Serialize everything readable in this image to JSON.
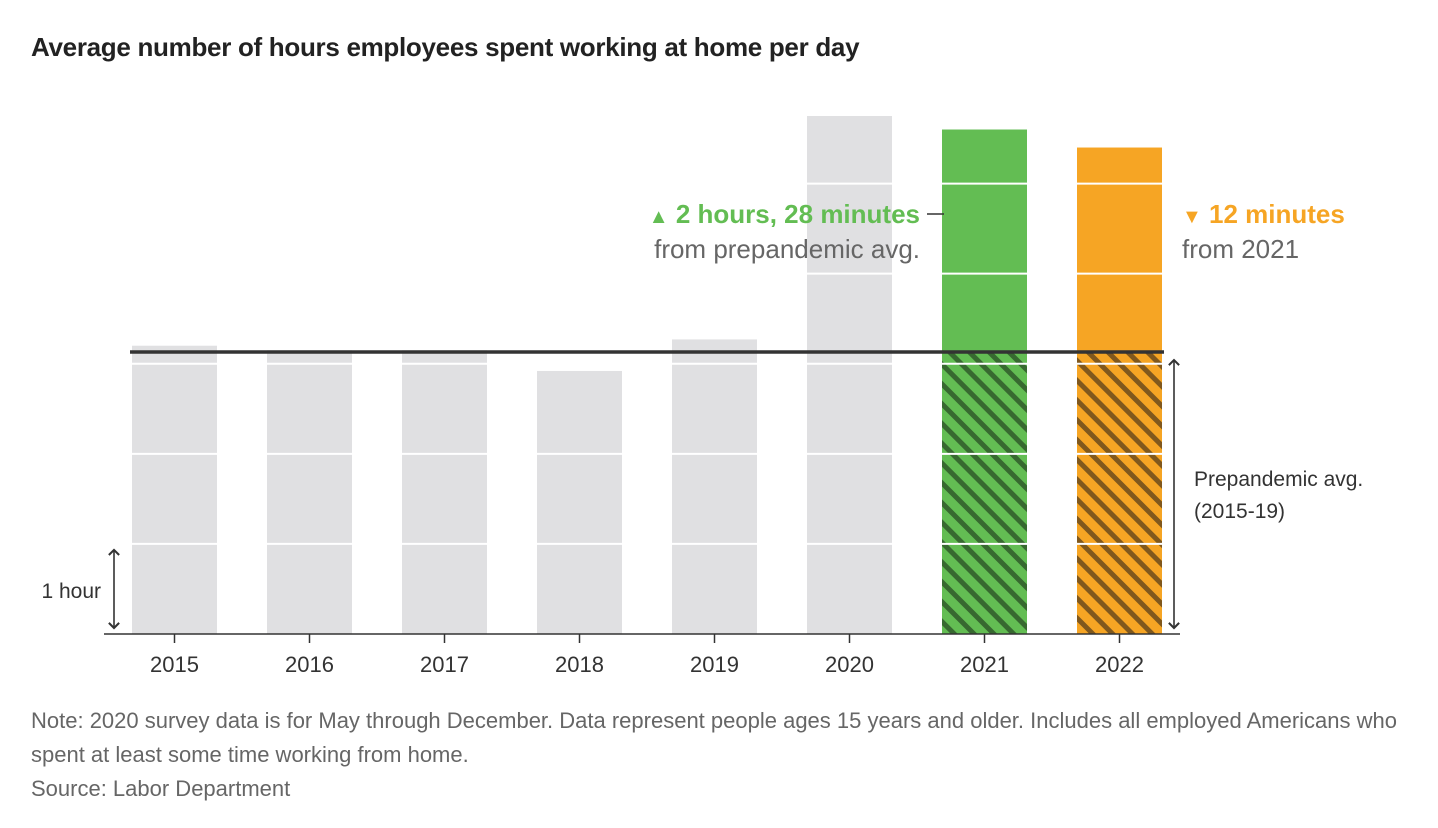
{
  "chart_data": {
    "type": "bar",
    "title": "Average number of hours employees spent working at home per day",
    "xlabel": "",
    "ylabel": "",
    "categories": [
      "2015",
      "2016",
      "2017",
      "2018",
      "2019",
      "2020",
      "2021",
      "2022"
    ],
    "values": [
      3.2,
      3.15,
      3.15,
      2.92,
      3.27,
      5.75,
      5.6,
      5.4
    ],
    "ylim": [
      0,
      5.75
    ],
    "gridlines_hours": [
      1,
      2,
      3,
      4,
      5
    ],
    "reference_line": {
      "value": 3.13,
      "label": "Prepandemic avg.",
      "sublabel": "(2015-19)"
    },
    "scale_label": "1 hour",
    "colors": {
      "default": "#e0e0e2",
      "2021": "#63bd53",
      "2022": "#f6a524",
      "reference": "#333333",
      "hatch": "#2e3b26"
    },
    "annotations": [
      {
        "category": "2021",
        "direction": "up",
        "symbol": "▲",
        "main": "2 hours, 28 minutes",
        "sub": "from prepandemic avg.",
        "color": "#63bd53"
      },
      {
        "category": "2022",
        "direction": "down",
        "symbol": "▼",
        "main": "12 minutes",
        "sub": "from 2021",
        "color": "#f6a524"
      }
    ]
  },
  "note": {
    "text": "Note: 2020 survey data is for May through December. Data represent people ages 15 years and older. Includes all employed Americans who spent at least some time working from home.",
    "source": "Source: Labor Department"
  }
}
